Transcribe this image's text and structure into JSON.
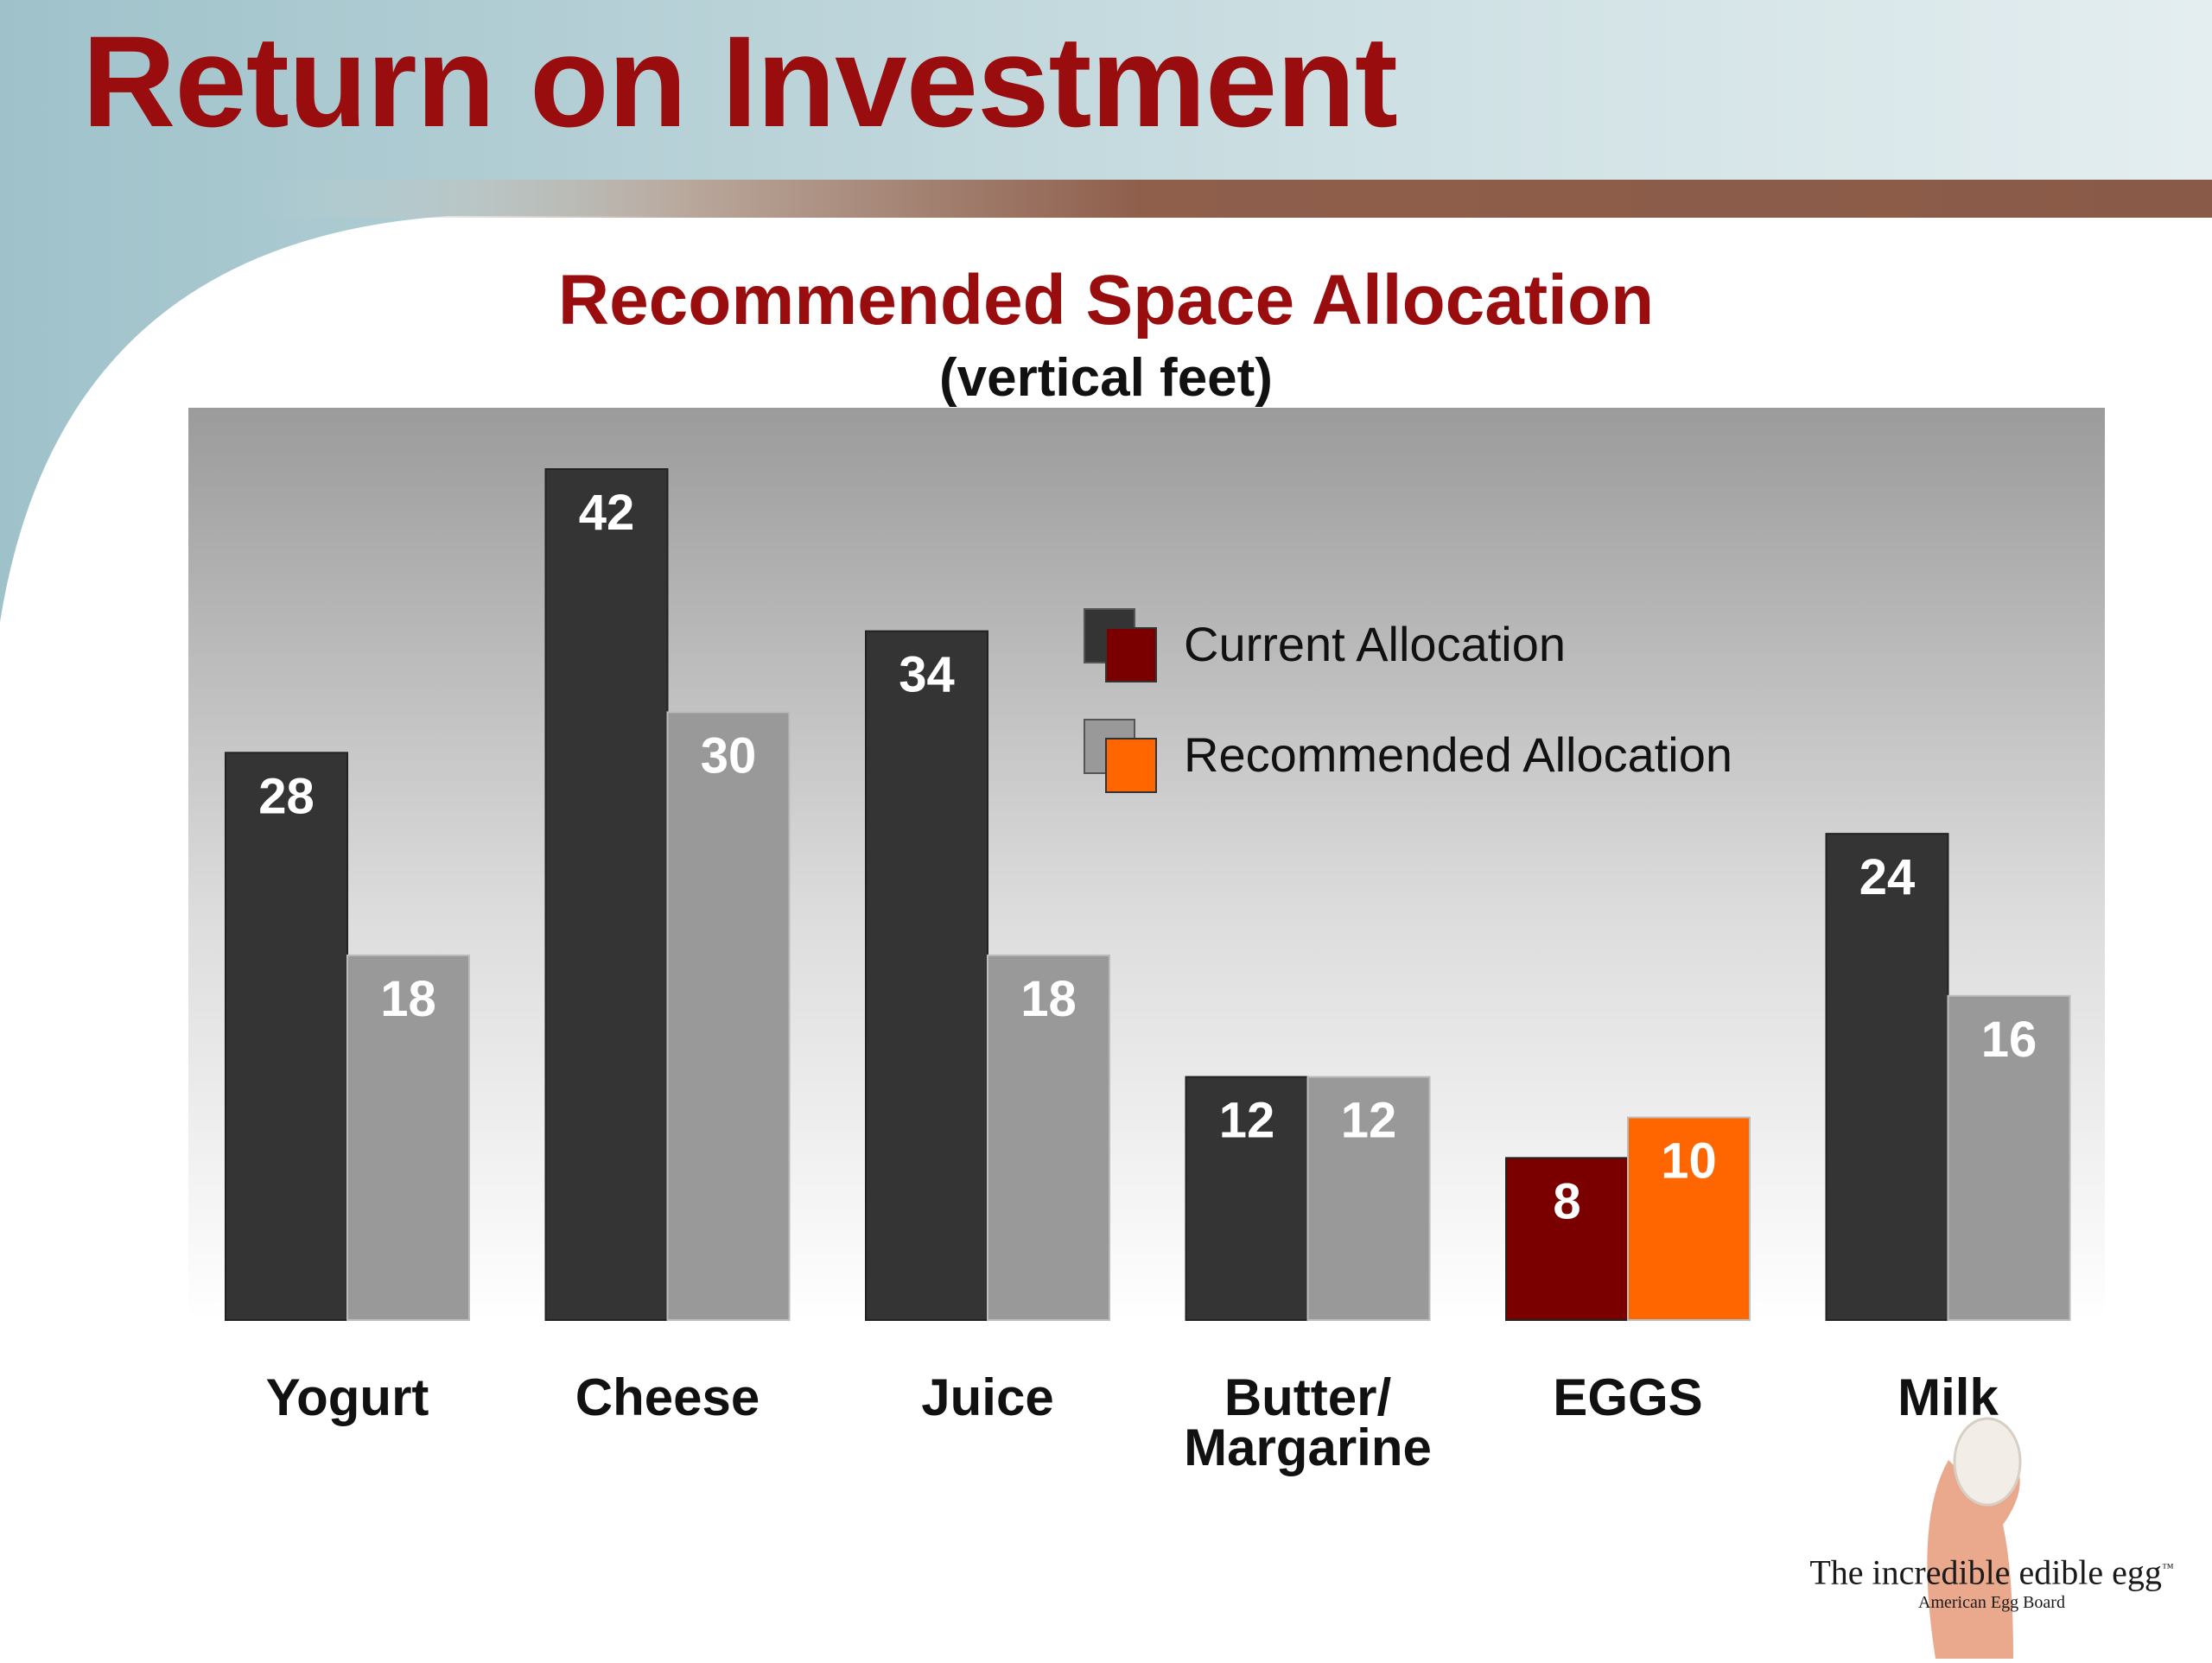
{
  "slide": {
    "title": "Return on Investment",
    "brand": {
      "tagline": "The incredible edible egg",
      "tm": "™",
      "org": "American Egg Board"
    }
  },
  "colors": {
    "title": "#9a0d0f",
    "bar_current": "#343434",
    "bar_recommended": "#999999",
    "bar_current_highlight": "#7a0000",
    "bar_recommended_highlight": "#ff6600",
    "divider": "#8a5a48"
  },
  "chart_data": {
    "type": "bar",
    "title": "Recommended Space Allocation",
    "subtitle": "(vertical feet)",
    "categories": [
      "Yogurt",
      "Cheese",
      "Juice",
      "Butter/\nMargarine",
      "EGGS",
      "Milk"
    ],
    "highlight_category": "EGGS",
    "series": [
      {
        "name": "Current Allocation",
        "values": [
          28,
          42,
          34,
          12,
          8,
          24
        ]
      },
      {
        "name": "Recommended Allocation",
        "values": [
          18,
          30,
          18,
          12,
          10,
          16
        ]
      }
    ],
    "ylim": [
      0,
      42
    ],
    "grid": false,
    "legend_position": "top-center"
  }
}
